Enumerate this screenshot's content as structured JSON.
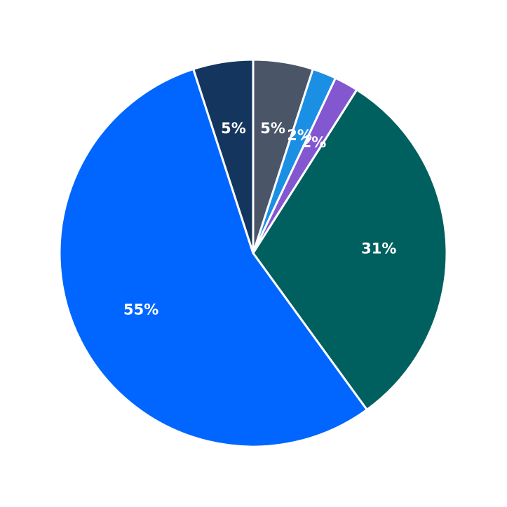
{
  "chart_data": {
    "type": "pie",
    "values": [
      5,
      2,
      2,
      31,
      55,
      5
    ],
    "value_labels": [
      "5%",
      "2%",
      "2%",
      "31%",
      "55%",
      "5%"
    ],
    "colors": [
      "#4a5568",
      "#1a8fe3",
      "#8257d0",
      "#005f5f",
      "#0066ff",
      "#14365e"
    ]
  }
}
